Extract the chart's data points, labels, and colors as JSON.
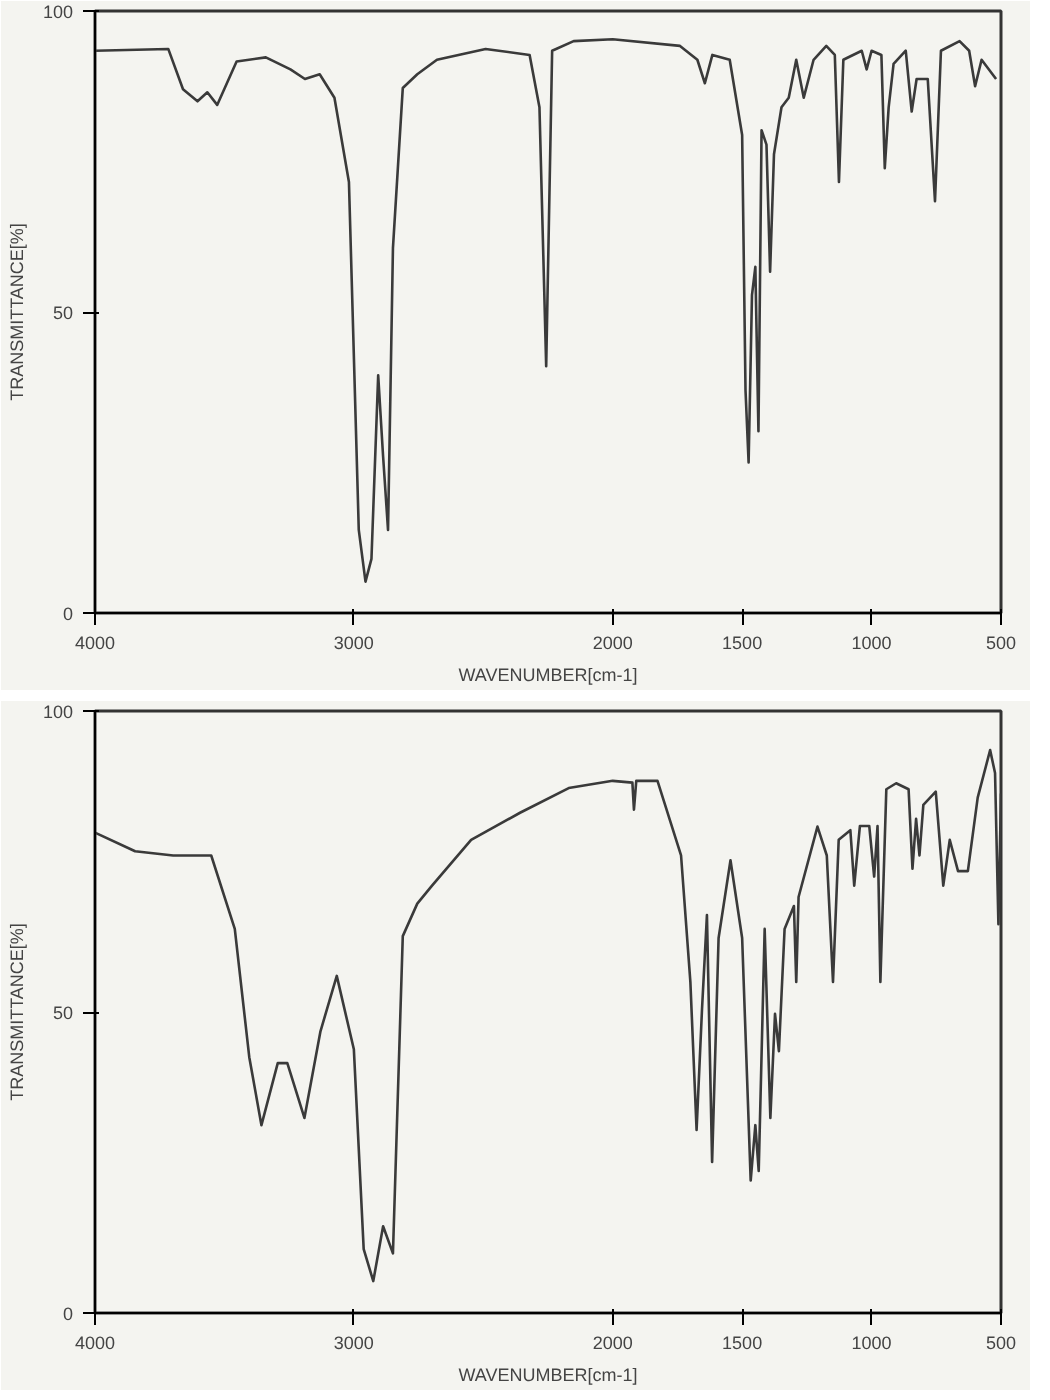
{
  "chart_data": [
    {
      "type": "line",
      "xlabel": "WAVENUMBER[cm-1]",
      "ylabel": "TRANSMITTANCE[%]",
      "xlim": [
        4000,
        500
      ],
      "ylim": [
        0,
        100
      ],
      "xticks": [
        4000,
        3000,
        2000,
        1500,
        1000,
        500
      ],
      "yticks": [
        0,
        50,
        100
      ],
      "grid": false,
      "x": [
        4000,
        3717,
        3660,
        3604,
        3566,
        3528,
        3453,
        3340,
        3245,
        3189,
        3132,
        3075,
        3019,
        2981,
        2955,
        2932,
        2906,
        2887,
        2868,
        2849,
        2811,
        2755,
        2679,
        2491,
        2321,
        2283,
        2257,
        2234,
        2151,
        2000,
        1740,
        1673,
        1644,
        1615,
        1548,
        1500,
        1487,
        1475,
        1462,
        1449,
        1437,
        1425,
        1406,
        1392,
        1377,
        1348,
        1320,
        1291,
        1262,
        1224,
        1175,
        1142,
        1126,
        1109,
        1038,
        1019,
        1000,
        962,
        949,
        934,
        915,
        868,
        845,
        826,
        783,
        755,
        732,
        660,
        623,
        600,
        575,
        519
      ],
      "series": [
        {
          "color": "#3a3a3a",
          "values": [
            93.4,
            93.7,
            87,
            85,
            86.5,
            84.4,
            91.6,
            92.3,
            90.3,
            88.7,
            89.5,
            85.6,
            71.6,
            13.8,
            5.2,
            9,
            39.5,
            26,
            13.8,
            60.6,
            87.2,
            89.5,
            91.9,
            93.7,
            92.7,
            84,
            41,
            93.4,
            95,
            95.3,
            94.2,
            91.9,
            88,
            92.7,
            91.9,
            79.4,
            37,
            25,
            52.8,
            57.5,
            30.2,
            80.2,
            77.8,
            56.7,
            76.2,
            84,
            85.6,
            91.9,
            85.6,
            91.9,
            94.2,
            92.7,
            71.6,
            91.9,
            93.4,
            90.3,
            93.4,
            92.7,
            73.9,
            84,
            91.2,
            93.4,
            83.3,
            88.7,
            88.7,
            68.4,
            93.4,
            95,
            93.4,
            87.5,
            91.9,
            88.7
          ]
        }
      ]
    },
    {
      "type": "line",
      "xlabel": "WAVENUMBER[cm-1]",
      "ylabel": "TRANSMITTANCE[%]",
      "xlim": [
        4000,
        500
      ],
      "ylim": [
        0,
        100
      ],
      "xticks": [
        4000,
        3000,
        2000,
        1500,
        1000,
        500
      ],
      "yticks": [
        0,
        50,
        100
      ],
      "grid": false,
      "x": [
        4000,
        3845,
        3698,
        3551,
        3460,
        3404,
        3357,
        3294,
        3257,
        3191,
        3129,
        3066,
        3000,
        2962,
        2925,
        2887,
        2849,
        2811,
        2755,
        2698,
        2547,
        2358,
        2170,
        2000,
        1924,
        1918,
        1909,
        1827,
        1736,
        1700,
        1676,
        1655,
        1636,
        1616,
        1591,
        1545,
        1500,
        1467,
        1449,
        1436,
        1413,
        1391,
        1373,
        1358,
        1336,
        1300,
        1291,
        1282,
        1209,
        1173,
        1149,
        1127,
        1082,
        1067,
        1045,
        1009,
        990,
        977,
        966,
        943,
        905,
        857,
        842,
        828,
        815,
        800,
        752,
        723,
        698,
        666,
        628,
        590,
        542,
        523,
        510,
        500
      ],
      "series": [
        {
          "color": "#3a3a3a",
          "values": [
            79.8,
            76.7,
            76,
            76,
            63.8,
            42.5,
            31.2,
            41.5,
            41.5,
            32.4,
            46.8,
            56,
            43.8,
            10.6,
            5.3,
            14.4,
            9.9,
            62.6,
            68,
            71,
            78.6,
            83.1,
            87.2,
            88.4,
            88.1,
            83.6,
            88.4,
            88.4,
            76,
            55,
            30.4,
            50.5,
            66.1,
            25.1,
            62.3,
            75.2,
            62.3,
            22,
            31.2,
            23.6,
            63.8,
            32.4,
            49.7,
            43.5,
            63.8,
            67.6,
            55,
            69.1,
            80.8,
            76,
            55,
            78.6,
            80.2,
            71,
            80.9,
            80.9,
            72.5,
            80.9,
            55,
            87,
            88,
            87,
            73.8,
            82.1,
            76,
            84.4,
            86.6,
            71,
            78.6,
            73.4,
            73.4,
            85.6,
            93.5,
            89.7,
            64.6,
            86.3
          ]
        }
      ]
    }
  ]
}
